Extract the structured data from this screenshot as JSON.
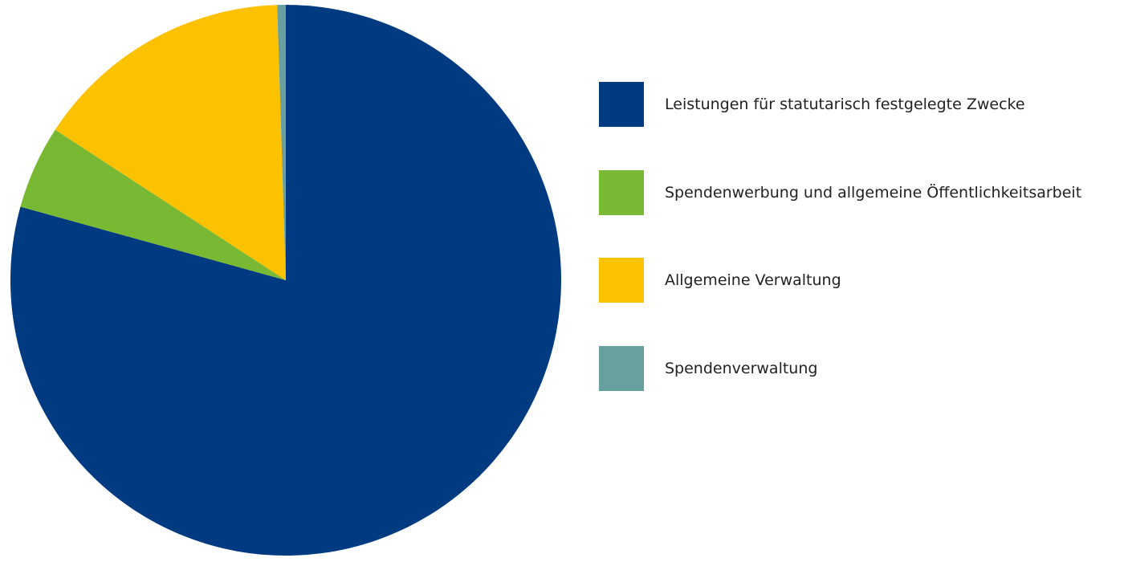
{
  "chart_data": {
    "type": "pie",
    "start_angle": "top",
    "direction": "clockwise",
    "unit": "percent (estimated)",
    "legend_placement": "right",
    "series": [
      {
        "name": "Leistungen für statutarisch festgelegte Zwecke",
        "value": 79.3,
        "color": "#003A80"
      },
      {
        "name": "Spendenwerbung und allgemeine Öffentlichkeitsarbeit",
        "value": 4.9,
        "color": "#78B833"
      },
      {
        "name": "Allgemeine Verwaltung",
        "value": 15.3,
        "color": "#FCC200"
      },
      {
        "name": "Spendenverwaltung",
        "value": 0.5,
        "color": "#67A09F"
      }
    ]
  }
}
